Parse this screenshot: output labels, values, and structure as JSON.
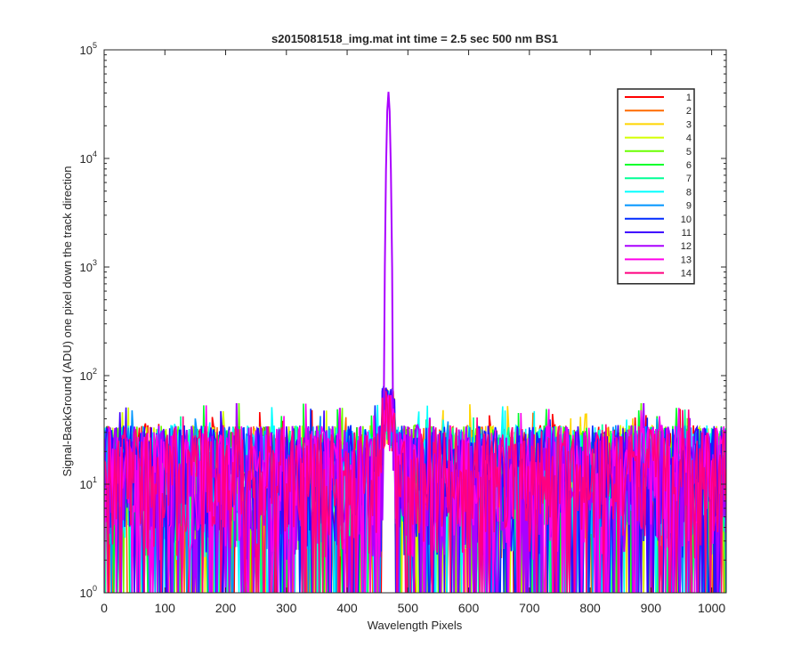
{
  "window": {
    "background": "#ffffff"
  },
  "chart_data": {
    "type": "line",
    "title": "s2015081518_img.mat int time = 2.5 sec  500 nm BS1",
    "xlabel": "Wavelength Pixels",
    "ylabel": "Signal-BackGround (ADU) one pixel down the track direction",
    "xlim": [
      0,
      1024
    ],
    "ylim": [
      1,
      100000
    ],
    "yscale": "log",
    "xticks": [
      0,
      100,
      200,
      300,
      400,
      500,
      600,
      700,
      800,
      900,
      1000
    ],
    "yticks": [
      {
        "value": 1,
        "base": "10",
        "exp": "0"
      },
      {
        "value": 10,
        "base": "10",
        "exp": "1"
      },
      {
        "value": 100,
        "base": "10",
        "exp": "2"
      },
      {
        "value": 1000,
        "base": "10",
        "exp": "3"
      },
      {
        "value": 10000,
        "base": "10",
        "exp": "4"
      },
      {
        "value": 100000,
        "base": "10",
        "exp": "5"
      }
    ],
    "grid": false,
    "legend_position": "top-right",
    "peak": {
      "center_x": 468,
      "half_width": 6,
      "max_value": 41000,
      "series": "12"
    },
    "noise": {
      "min": 1,
      "typical_max": 35,
      "max": 56
    },
    "series": [
      {
        "name": "1",
        "color": "#ff0000"
      },
      {
        "name": "2",
        "color": "#ff6a00"
      },
      {
        "name": "3",
        "color": "#ffd500"
      },
      {
        "name": "4",
        "color": "#d4ff00"
      },
      {
        "name": "5",
        "color": "#6aff00"
      },
      {
        "name": "6",
        "color": "#00ff2b"
      },
      {
        "name": "7",
        "color": "#00ff95"
      },
      {
        "name": "8",
        "color": "#00ffff"
      },
      {
        "name": "9",
        "color": "#0095ff"
      },
      {
        "name": "10",
        "color": "#002bff"
      },
      {
        "name": "11",
        "color": "#4000ff"
      },
      {
        "name": "12",
        "color": "#aa00ff"
      },
      {
        "name": "13",
        "color": "#ff00ea"
      },
      {
        "name": "14",
        "color": "#ff0080"
      }
    ]
  }
}
